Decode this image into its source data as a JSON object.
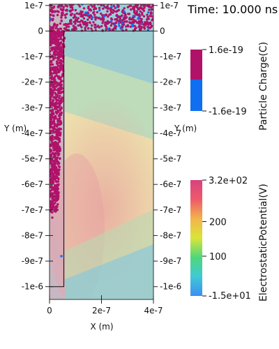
{
  "time_label": "Time: 10.000 ns",
  "chart_data": {
    "type": "heatmap",
    "title": "",
    "xlabel": "X (m)",
    "ylabel": "Y (m)",
    "xlim": [
      0,
      4e-07
    ],
    "ylim": [
      -1.05e-06,
      1.05e-07
    ],
    "x_ticks": [
      {
        "value": 0,
        "label": "0"
      },
      {
        "value": 2e-07,
        "label": "2e-7"
      },
      {
        "value": 4e-07,
        "label": "4e-7"
      }
    ],
    "y_ticks": [
      {
        "value": 1e-07,
        "label": "1e-7"
      },
      {
        "value": 0,
        "label": "0"
      },
      {
        "value": -1e-07,
        "label": "-1e-7"
      },
      {
        "value": -2e-07,
        "label": "-2e-7"
      },
      {
        "value": -3e-07,
        "label": "-3e-7"
      },
      {
        "value": -4e-07,
        "label": "-4e-7"
      },
      {
        "value": -5e-07,
        "label": "-5e-7"
      },
      {
        "value": -6e-07,
        "label": "-6e-7"
      },
      {
        "value": -7e-07,
        "label": "-7e-7"
      },
      {
        "value": -8e-07,
        "label": "-8e-7"
      },
      {
        "value": -9e-07,
        "label": "-9e-7"
      },
      {
        "value": -1e-06,
        "label": "-1e-6"
      }
    ],
    "field": {
      "name": "ElectrostaticPotential(V)",
      "min": -15,
      "max": 320,
      "colormap": "rainbow-pastel",
      "range_labels": [
        "-1.5e+01",
        "3.2e+02"
      ],
      "ticks": [
        {
          "value": 100,
          "label": "100"
        },
        {
          "value": 200,
          "label": "200"
        }
      ],
      "colors": [
        "#3b8ff2",
        "#3fc9d6",
        "#4fd77a",
        "#d9e53a",
        "#f3b44a",
        "#ee5a6a",
        "#d9417f"
      ]
    },
    "particles": {
      "name": "Particle Charge(C)",
      "range_labels": [
        "1.6e-19",
        "-1.6e-19"
      ],
      "colors": {
        "negative": "#0f6ff0",
        "positive": "#b0126a"
      }
    },
    "electrode_outline": {
      "x": [
        0,
        5.5e-08,
        5.5e-08,
        4e-07
      ],
      "y": [
        -1e-06,
        -1e-06,
        0,
        0
      ]
    }
  }
}
